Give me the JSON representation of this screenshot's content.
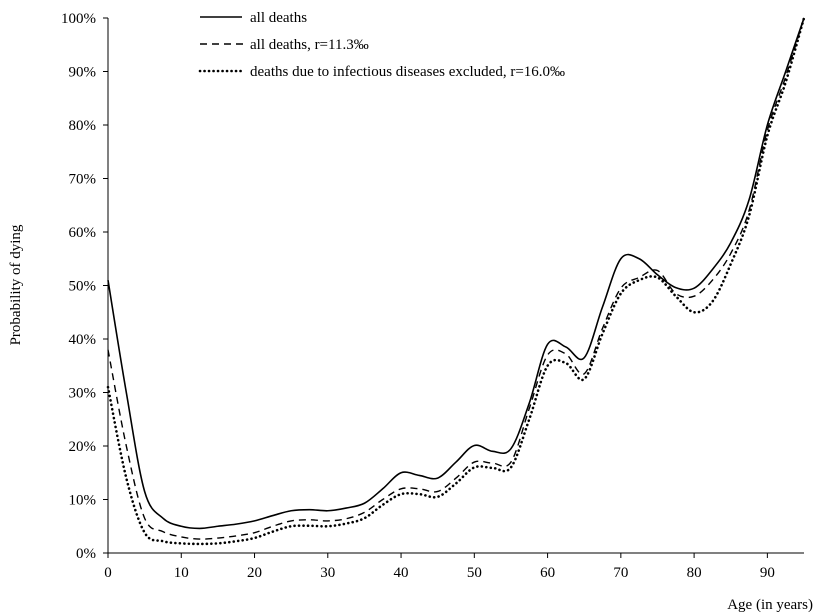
{
  "chart_data": {
    "type": "line",
    "xlabel": "Age (in years)",
    "ylabel": "Probability of dying",
    "xlim": [
      0,
      95
    ],
    "ylim": [
      0,
      100
    ],
    "x_ticks": [
      0,
      10,
      20,
      30,
      40,
      50,
      60,
      70,
      80,
      90
    ],
    "y_ticks": [
      0,
      10,
      20,
      30,
      40,
      50,
      60,
      70,
      80,
      90,
      100
    ],
    "x_tick_labels": [
      "0",
      "10",
      "20",
      "30",
      "40",
      "50",
      "60",
      "70",
      "80",
      "90"
    ],
    "y_tick_labels": [
      "0%",
      "10%",
      "20%",
      "30%",
      "40%",
      "50%",
      "60%",
      "70%",
      "80%",
      "90%",
      "100%"
    ],
    "grid": false,
    "legend_position": "top-center",
    "series": [
      {
        "name": "all deaths",
        "style": "solid",
        "color": "#000000",
        "points": [
          [
            0,
            51
          ],
          [
            2.5,
            30
          ],
          [
            5,
            11.5
          ],
          [
            7.5,
            6.5
          ],
          [
            10,
            5
          ],
          [
            12.5,
            4.6
          ],
          [
            15,
            5
          ],
          [
            17.5,
            5.4
          ],
          [
            20,
            6
          ],
          [
            22.5,
            7
          ],
          [
            25,
            7.9
          ],
          [
            27.5,
            8.1
          ],
          [
            30,
            7.9
          ],
          [
            32.5,
            8.4
          ],
          [
            35,
            9.3
          ],
          [
            37.5,
            12
          ],
          [
            40,
            15
          ],
          [
            42.5,
            14.5
          ],
          [
            45,
            14
          ],
          [
            47.5,
            17
          ],
          [
            50,
            20.1
          ],
          [
            52.5,
            19
          ],
          [
            55,
            19.5
          ],
          [
            57.5,
            28
          ],
          [
            60,
            39
          ],
          [
            62.5,
            38.5
          ],
          [
            65,
            36.5
          ],
          [
            67.5,
            46
          ],
          [
            70,
            55
          ],
          [
            72.5,
            55
          ],
          [
            75,
            52
          ],
          [
            77.5,
            49.6
          ],
          [
            80,
            49.5
          ],
          [
            82.5,
            53
          ],
          [
            85,
            58
          ],
          [
            87.5,
            66
          ],
          [
            90,
            80
          ],
          [
            92.5,
            90
          ],
          [
            95,
            100
          ]
        ]
      },
      {
        "name": "all deaths, r=11.3‰",
        "style": "dashed",
        "color": "#000000",
        "points": [
          [
            0,
            38
          ],
          [
            2.5,
            20
          ],
          [
            5,
            6.5
          ],
          [
            7.5,
            4
          ],
          [
            10,
            3
          ],
          [
            12.5,
            2.6
          ],
          [
            15,
            2.8
          ],
          [
            17.5,
            3.2
          ],
          [
            20,
            3.8
          ],
          [
            22.5,
            5
          ],
          [
            25,
            6
          ],
          [
            27.5,
            6.2
          ],
          [
            30,
            6
          ],
          [
            32.5,
            6.4
          ],
          [
            35,
            7.6
          ],
          [
            37.5,
            10
          ],
          [
            40,
            12
          ],
          [
            42.5,
            12
          ],
          [
            45,
            11.5
          ],
          [
            47.5,
            14
          ],
          [
            50,
            17
          ],
          [
            52.5,
            16.8
          ],
          [
            55,
            17
          ],
          [
            57.5,
            27
          ],
          [
            60,
            37
          ],
          [
            62.5,
            37.2
          ],
          [
            65,
            33.5
          ],
          [
            67.5,
            42
          ],
          [
            70,
            49.5
          ],
          [
            72.5,
            51.5
          ],
          [
            75,
            52.8
          ],
          [
            77.5,
            48.5
          ],
          [
            80,
            48
          ],
          [
            82.5,
            51
          ],
          [
            85,
            56
          ],
          [
            87.5,
            64
          ],
          [
            90,
            79
          ],
          [
            92.5,
            89
          ],
          [
            95,
            100
          ]
        ]
      },
      {
        "name": "deaths due to infectious diseases excluded, r=16.0‰",
        "style": "dotted",
        "color": "#000000",
        "points": [
          [
            0,
            31
          ],
          [
            2.5,
            14
          ],
          [
            5,
            3.8
          ],
          [
            7.5,
            2.2
          ],
          [
            10,
            1.8
          ],
          [
            12.5,
            1.7
          ],
          [
            15,
            1.8
          ],
          [
            17.5,
            2.2
          ],
          [
            20,
            2.8
          ],
          [
            22.5,
            4
          ],
          [
            25,
            5
          ],
          [
            27.5,
            5.1
          ],
          [
            30,
            5
          ],
          [
            32.5,
            5.5
          ],
          [
            35,
            6.5
          ],
          [
            37.5,
            9
          ],
          [
            40,
            11
          ],
          [
            42.5,
            11
          ],
          [
            45,
            10.5
          ],
          [
            47.5,
            13
          ],
          [
            50,
            16
          ],
          [
            52.5,
            15.9
          ],
          [
            55,
            16
          ],
          [
            57.5,
            25
          ],
          [
            60,
            35
          ],
          [
            62.5,
            35.5
          ],
          [
            65,
            32.5
          ],
          [
            67.5,
            41
          ],
          [
            70,
            48.5
          ],
          [
            72.5,
            51
          ],
          [
            75,
            51.5
          ],
          [
            77.5,
            48
          ],
          [
            80,
            45
          ],
          [
            82.5,
            47
          ],
          [
            85,
            54
          ],
          [
            87.5,
            63
          ],
          [
            90,
            78
          ],
          [
            92.5,
            88
          ],
          [
            95,
            100
          ]
        ]
      }
    ]
  }
}
